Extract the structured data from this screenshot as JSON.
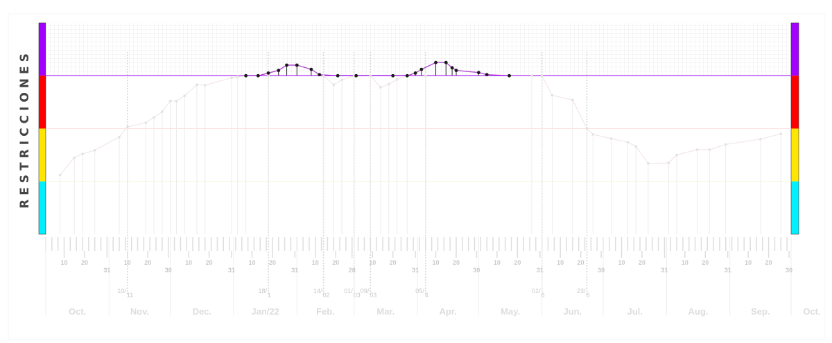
{
  "colors": {
    "purple": "#a200ff",
    "red": "#ff0000",
    "yellow": "#ffe600",
    "cyan": "#00f0ff",
    "grid": "#e6e6e6",
    "dim_line": "#f3e6e6",
    "active_line": "#b44bd4"
  },
  "chart_data": {
    "type": "line",
    "ylabel": "RESTRICCIONES",
    "x_domain": [
      "2021-10-01",
      "2022-10-01"
    ],
    "levels": [
      {
        "name": "purple",
        "color": "#a200ff",
        "range": [
          3,
          4
        ]
      },
      {
        "name": "red",
        "color": "#ff0000",
        "range": [
          2,
          3
        ]
      },
      {
        "name": "yellow",
        "color": "#ffe600",
        "range": [
          1,
          2
        ]
      },
      {
        "name": "cyan",
        "color": "#00f0ff",
        "range": [
          0,
          1
        ]
      }
    ],
    "ylim": [
      0,
      4
    ],
    "grid_in_top_band": true,
    "month_labels": [
      "Oct.",
      "Nov.",
      "Dec.",
      "Jan/22",
      "Feb.",
      "Mar.",
      "Apr.",
      "May.",
      "Jun.",
      "Jul.",
      "Aug.",
      "Sep.",
      "Oct."
    ],
    "day_ticks": [
      "10",
      "20",
      "31",
      "10",
      "20",
      "30",
      "10",
      "20",
      "31",
      "10",
      "20",
      "31",
      "10",
      "20",
      "28",
      "10",
      "20",
      "31",
      "10",
      "20",
      "30",
      "10",
      "20",
      "31",
      "10",
      "20",
      "30",
      "10",
      "20",
      "31",
      "10",
      "20",
      "31",
      "10",
      "20",
      "30"
    ],
    "date_marks": [
      {
        "date": "2021-11-10",
        "label": "10/11"
      },
      {
        "date": "2022-01-18",
        "label": "18/1"
      },
      {
        "date": "2022-02-14",
        "label": "14/02"
      },
      {
        "date": "2022-03-01",
        "label": "01/03"
      },
      {
        "date": "2022-03-09",
        "label": "09/03"
      },
      {
        "date": "2022-04-05",
        "label": "05/4"
      },
      {
        "date": "2022-06-01",
        "label": "01/6"
      },
      {
        "date": "2022-06-23",
        "label": "23/6"
      }
    ],
    "series": [
      {
        "points": [
          [
            "2021-10-08",
            1.12
          ],
          [
            "2021-10-15",
            1.45
          ],
          [
            "2021-10-19",
            1.52
          ],
          [
            "2021-10-25",
            1.59
          ],
          [
            "2021-11-06",
            1.84
          ],
          [
            "2021-11-10",
            2.03
          ],
          [
            "2021-11-19",
            2.11
          ],
          [
            "2021-11-23",
            2.21
          ],
          [
            "2021-11-27",
            2.32
          ],
          [
            "2021-12-01",
            2.52
          ],
          [
            "2021-12-04",
            2.52
          ],
          [
            "2021-12-08",
            2.62
          ],
          [
            "2021-12-14",
            2.83
          ],
          [
            "2021-12-18",
            2.82
          ],
          [
            "2021-12-31",
            2.96
          ],
          [
            "2022-01-03",
            2.98
          ],
          [
            "2022-01-07",
            3.0
          ],
          [
            "2022-01-18",
            3.0
          ],
          [
            "2022-02-14",
            3.0
          ],
          [
            "2022-02-19",
            2.83
          ],
          [
            "2022-02-23",
            2.92
          ],
          [
            "2022-03-01",
            3.0
          ],
          [
            "2022-03-09",
            3.0
          ],
          [
            "2022-03-14",
            2.78
          ],
          [
            "2022-03-18",
            2.84
          ],
          [
            "2022-03-22",
            2.93
          ],
          [
            "2022-03-27",
            3.0
          ],
          [
            "2022-04-05",
            3.0
          ],
          [
            "2022-05-27",
            3.0
          ],
          [
            "2022-06-01",
            3.0
          ],
          [
            "2022-06-06",
            2.63
          ],
          [
            "2022-06-16",
            2.54
          ],
          [
            "2022-06-23",
            2.0
          ],
          [
            "2022-06-26",
            1.89
          ],
          [
            "2022-07-05",
            1.81
          ],
          [
            "2022-07-13",
            1.74
          ],
          [
            "2022-07-17",
            1.66
          ],
          [
            "2022-07-23",
            1.34
          ],
          [
            "2022-08-02",
            1.35
          ],
          [
            "2022-08-06",
            1.5
          ],
          [
            "2022-08-16",
            1.6
          ],
          [
            "2022-08-22",
            1.6
          ],
          [
            "2022-08-30",
            1.7
          ],
          [
            "2022-09-16",
            1.8
          ],
          [
            "2022-09-26",
            1.9
          ]
        ]
      },
      {
        "points": [
          [
            "2022-01-07",
            3.0
          ],
          [
            "2022-01-13",
            3.0
          ],
          [
            "2022-01-18",
            3.05
          ],
          [
            "2022-01-23",
            3.1
          ],
          [
            "2022-01-27",
            3.2
          ],
          [
            "2022-02-01",
            3.2
          ],
          [
            "2022-02-08",
            3.12
          ],
          [
            "2022-02-12",
            3.02
          ],
          [
            "2022-02-21",
            3.0
          ],
          [
            "2022-03-02",
            3.0
          ],
          [
            "2022-03-20",
            3.0
          ],
          [
            "2022-03-27",
            3.0
          ],
          [
            "2022-03-31",
            3.05
          ],
          [
            "2022-04-03",
            3.12
          ],
          [
            "2022-04-10",
            3.25
          ],
          [
            "2022-04-15",
            3.25
          ],
          [
            "2022-04-18",
            3.15
          ],
          [
            "2022-04-20",
            3.1
          ],
          [
            "2022-05-01",
            3.06
          ],
          [
            "2022-05-05",
            3.02
          ],
          [
            "2022-05-16",
            3.0
          ]
        ]
      }
    ]
  }
}
